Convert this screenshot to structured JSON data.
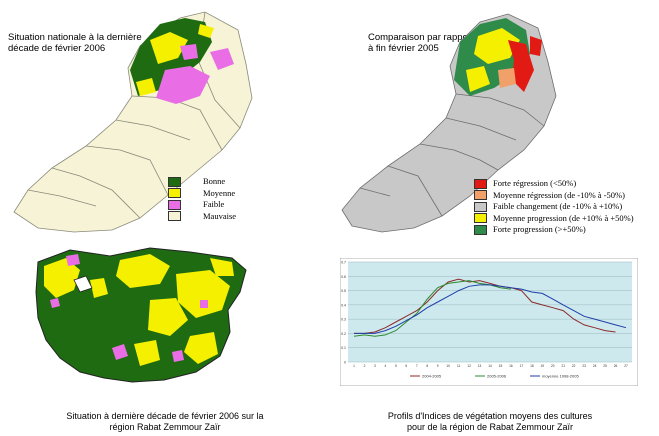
{
  "panels": {
    "national": {
      "title_line1": "Situation nationale à la dernière",
      "title_line2": "décade de février 2006",
      "legend": [
        {
          "label": "Bonne",
          "color": "#1e6b12"
        },
        {
          "label": "Moyenne",
          "color": "#f4f000"
        },
        {
          "label": "Faible",
          "color": "#e96ee5"
        },
        {
          "label": "Mauvaise",
          "color": "#f7f3d6"
        }
      ]
    },
    "comparison": {
      "title_line1": "Comparaison par rapport",
      "title_line2": "à fin février 2005",
      "legend": [
        {
          "label": "Forte régression (<50%)",
          "color": "#e11b14"
        },
        {
          "label": "Moyenne régression (de -10% à -50%)",
          "color": "#f2a06a"
        },
        {
          "label": "Faible changement (de -10% à +10%)",
          "color": "#c8c8c8"
        },
        {
          "label": "Moyenne progression (de +10% à +50%)",
          "color": "#f4f000"
        },
        {
          "label": "Forte progression (>+50%)",
          "color": "#2e8b4a"
        }
      ]
    },
    "regional": {
      "caption_line1": "Situation à dernière décade de février 2006 sur la",
      "caption_line2": "région Rabat Zemmour Zaïr"
    },
    "profiles": {
      "caption_line1": "Profils d'Indices de végétation moyens des cultures",
      "caption_line2": "pour de la région de Rabat Zemmour Zaïr"
    }
  },
  "chart_data": {
    "type": "line",
    "ylim": [
      0,
      0.7
    ],
    "yticks": [
      "0",
      "0.1",
      "0.2",
      "0.3",
      "0.4",
      "0.5",
      "0.6",
      "0.7"
    ],
    "x": [
      1,
      2,
      3,
      4,
      5,
      6,
      7,
      8,
      9,
      10,
      11,
      12,
      13,
      14,
      15,
      16,
      17,
      18,
      19,
      20,
      21,
      22,
      23,
      24,
      25,
      26,
      27
    ],
    "series": [
      {
        "name": "2004-2005",
        "color": "#8b2a2a",
        "values": [
          0.2,
          0.2,
          0.21,
          0.24,
          0.28,
          0.32,
          0.36,
          0.42,
          0.5,
          0.56,
          0.58,
          0.56,
          0.57,
          0.55,
          0.53,
          0.52,
          0.5,
          0.42,
          0.4,
          0.38,
          0.36,
          0.3,
          0.26,
          0.24,
          0.22,
          0.21,
          null
        ]
      },
      {
        "name": "2005-2006",
        "color": "#2e8b2e",
        "values": [
          0.18,
          0.19,
          0.18,
          0.19,
          0.22,
          0.28,
          0.34,
          0.44,
          0.52,
          0.55,
          0.56,
          0.57,
          0.55,
          0.54,
          0.52,
          0.51,
          null,
          null,
          null,
          null,
          null,
          null,
          null,
          null,
          null,
          null,
          null
        ]
      },
      {
        "name": "moyenne 1998-2005",
        "color": "#1f3fa8",
        "values": [
          0.2,
          0.2,
          0.2,
          0.22,
          0.25,
          0.29,
          0.33,
          0.38,
          0.42,
          0.46,
          0.5,
          0.53,
          0.54,
          0.54,
          0.53,
          0.52,
          0.51,
          0.49,
          0.48,
          0.44,
          0.4,
          0.36,
          0.32,
          0.3,
          0.28,
          0.26,
          0.24
        ]
      }
    ]
  }
}
